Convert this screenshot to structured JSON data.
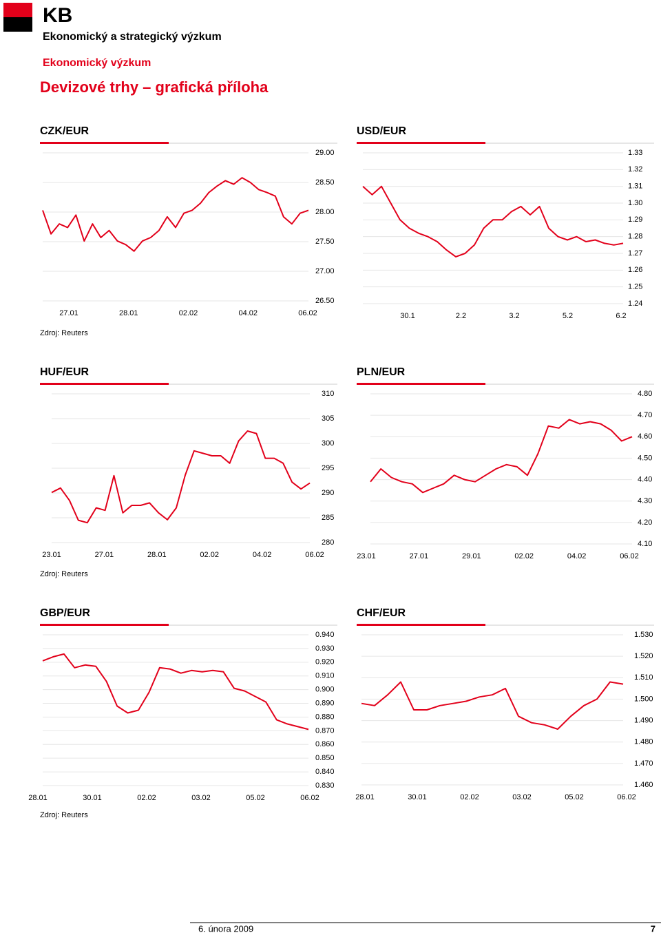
{
  "header": {
    "logo": "KB",
    "org": "Ekonomický a strategický výzkum",
    "section": "Ekonomický výzkum",
    "title": "Devizové trhy – grafická příloha"
  },
  "sources": [
    "Zdroj: Reuters",
    "Zdroj: Reuters",
    "Zdroj: Reuters"
  ],
  "footer": {
    "date": "6. února 2009",
    "page": "7"
  },
  "chart_data": [
    {
      "type": "line",
      "title": "CZK/EUR",
      "color": "#e2001a",
      "grid": true,
      "values": [
        28.03,
        27.63,
        27.8,
        27.74,
        27.95,
        27.51,
        27.8,
        27.57,
        27.69,
        27.51,
        27.45,
        27.34,
        27.51,
        27.57,
        27.69,
        27.92,
        27.74,
        27.98,
        28.03,
        28.15,
        28.33,
        28.44,
        28.53,
        28.47,
        28.58,
        28.5,
        28.38,
        28.33,
        28.27,
        27.92,
        27.8,
        27.98,
        28.03
      ],
      "ylim": [
        26.5,
        29.0
      ],
      "yticks": [
        {
          "value": 26.5,
          "label": "26.50"
        },
        {
          "value": 27.0,
          "label": "27.00"
        },
        {
          "value": 27.5,
          "label": "27.50"
        },
        {
          "value": 28.0,
          "label": "28.00"
        },
        {
          "value": 28.5,
          "label": "28.50"
        },
        {
          "value": 29.0,
          "label": "29.00"
        }
      ],
      "x_tick_labels": [
        "27.01",
        "28.01",
        "02.02",
        "04.02",
        "06.02"
      ]
    },
    {
      "type": "line",
      "title": "USD/EUR",
      "color": "#e2001a",
      "grid": true,
      "values": [
        1.31,
        1.305,
        1.31,
        1.3,
        1.29,
        1.285,
        1.282,
        1.28,
        1.277,
        1.272,
        1.268,
        1.27,
        1.275,
        1.285,
        1.29,
        1.29,
        1.295,
        1.298,
        1.293,
        1.298,
        1.285,
        1.28,
        1.278,
        1.28,
        1.277,
        1.278,
        1.276,
        1.275,
        1.276
      ],
      "ylim": [
        1.24,
        1.33
      ],
      "yticks": [
        1.24,
        1.25,
        1.26,
        1.27,
        1.28,
        1.29,
        {
          "value": 1.3,
          "label": "1.30"
        },
        1.31,
        1.32,
        1.33
      ],
      "x_tick_labels": [
        "30.1",
        "2.2",
        "3.2",
        "5.2",
        "6.2"
      ]
    },
    {
      "type": "line",
      "title": "HUF/EUR",
      "color": "#e2001a",
      "grid": true,
      "values": [
        290.1,
        291,
        288.5,
        284.5,
        284,
        287,
        286.5,
        293.5,
        286,
        287.5,
        287.5,
        288,
        286,
        284.6,
        287,
        293.6,
        298.5,
        298,
        297.5,
        297.5,
        296,
        300.5,
        302.5,
        302,
        297,
        297,
        296,
        292.2,
        290.8,
        292
      ],
      "ylim": [
        280,
        310
      ],
      "yticks": [
        280,
        285,
        290,
        295,
        300,
        305,
        310
      ],
      "x_tick_labels": [
        "23.01",
        "27.01",
        "28.01",
        "02.02",
        "04.02",
        "06.02"
      ]
    },
    {
      "type": "line",
      "title": "PLN/EUR",
      "color": "#e2001a",
      "grid": true,
      "values": [
        4.39,
        4.45,
        4.41,
        4.39,
        4.38,
        4.34,
        4.36,
        4.38,
        4.42,
        4.4,
        4.39,
        4.42,
        4.45,
        4.47,
        4.46,
        4.42,
        4.52,
        4.65,
        4.64,
        4.68,
        4.66,
        4.67,
        4.66,
        4.63,
        4.58,
        4.6
      ],
      "ylim": [
        4.1,
        4.8
      ],
      "yticks": [
        {
          "value": 4.1,
          "label": "4.10"
        },
        {
          "value": 4.2,
          "label": "4.20"
        },
        {
          "value": 4.3,
          "label": "4.30"
        },
        {
          "value": 4.4,
          "label": "4.40"
        },
        {
          "value": 4.5,
          "label": "4.50"
        },
        {
          "value": 4.6,
          "label": "4.60"
        },
        {
          "value": 4.7,
          "label": "4.70"
        },
        {
          "value": 4.8,
          "label": "4.80"
        }
      ],
      "x_tick_labels": [
        "23.01",
        "27.01",
        "29.01",
        "02.02",
        "04.02",
        "06.02"
      ]
    },
    {
      "type": "line",
      "title": "GBP/EUR",
      "color": "#e2001a",
      "grid": true,
      "values": [
        0.921,
        0.924,
        0.926,
        0.916,
        0.918,
        0.917,
        0.906,
        0.888,
        0.883,
        0.885,
        0.898,
        0.916,
        0.915,
        0.912,
        0.914,
        0.913,
        0.914,
        0.913,
        0.901,
        0.899,
        0.895,
        0.891,
        0.878,
        0.875,
        0.873,
        0.871
      ],
      "ylim": [
        0.83,
        0.94
      ],
      "yticks": [
        {
          "value": 0.83,
          "label": "0.830"
        },
        {
          "value": 0.84,
          "label": "0.840"
        },
        {
          "value": 0.85,
          "label": "0.850"
        },
        {
          "value": 0.86,
          "label": "0.860"
        },
        {
          "value": 0.87,
          "label": "0.870"
        },
        {
          "value": 0.88,
          "label": "0.880"
        },
        {
          "value": 0.89,
          "label": "0.890"
        },
        {
          "value": 0.9,
          "label": "0.900"
        },
        {
          "value": 0.91,
          "label": "0.910"
        },
        {
          "value": 0.92,
          "label": "0.920"
        },
        {
          "value": 0.93,
          "label": "0.930"
        },
        {
          "value": 0.94,
          "label": "0.940"
        }
      ],
      "x_tick_labels": [
        "28.01",
        "30.01",
        "02.02",
        "03.02",
        "05.02",
        "06.02"
      ]
    },
    {
      "type": "line",
      "title": "CHF/EUR",
      "color": "#e2001a",
      "grid": true,
      "values": [
        1.498,
        1.497,
        1.502,
        1.508,
        1.495,
        1.495,
        1.497,
        1.498,
        1.499,
        1.501,
        1.502,
        1.505,
        1.492,
        1.489,
        1.488,
        1.486,
        1.492,
        1.497,
        1.5,
        1.508,
        1.507
      ],
      "ylim": [
        1.46,
        1.53
      ],
      "yticks": [
        {
          "value": 1.46,
          "label": "1.460"
        },
        {
          "value": 1.47,
          "label": "1.470"
        },
        {
          "value": 1.48,
          "label": "1.480"
        },
        {
          "value": 1.49,
          "label": "1.490"
        },
        {
          "value": 1.5,
          "label": "1.500"
        },
        {
          "value": 1.51,
          "label": "1.510"
        },
        {
          "value": 1.52,
          "label": "1.520"
        },
        {
          "value": 1.53,
          "label": "1.530"
        }
      ],
      "x_tick_labels": [
        "28.01",
        "30.01",
        "02.02",
        "03.02",
        "05.02",
        "06.02"
      ]
    }
  ]
}
